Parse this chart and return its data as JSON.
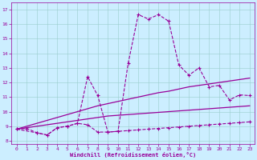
{
  "xlabel": "Windchill (Refroidissement éolien,°C)",
  "bg_color": "#cceeff",
  "line_color": "#990099",
  "grid_color": "#99cccc",
  "xlim": [
    -0.5,
    23.5
  ],
  "ylim": [
    7.8,
    17.5
  ],
  "xticks": [
    0,
    1,
    2,
    3,
    4,
    5,
    6,
    7,
    8,
    9,
    10,
    11,
    12,
    13,
    14,
    15,
    16,
    17,
    18,
    19,
    20,
    21,
    22,
    23
  ],
  "yticks": [
    8,
    9,
    10,
    11,
    12,
    13,
    14,
    15,
    16,
    17
  ],
  "lines": [
    {
      "x": [
        0,
        1,
        2,
        3,
        4,
        5,
        6,
        7,
        8,
        9,
        10,
        11,
        12,
        13,
        14,
        15,
        16,
        17,
        18,
        19,
        20,
        21,
        22,
        23
      ],
      "y": [
        8.8,
        8.9,
        9.0,
        9.1,
        9.2,
        9.3,
        9.4,
        9.5,
        9.6,
        9.7,
        9.75,
        9.8,
        9.85,
        9.9,
        9.95,
        10.0,
        10.05,
        10.1,
        10.15,
        10.2,
        10.25,
        10.3,
        10.35,
        10.4
      ],
      "marker": false,
      "linestyle": "-",
      "linewidth": 0.9
    },
    {
      "x": [
        0,
        1,
        2,
        3,
        4,
        5,
        6,
        7,
        8,
        9,
        10,
        11,
        12,
        13,
        14,
        15,
        16,
        17,
        18,
        19,
        20,
        21,
        22,
        23
      ],
      "y": [
        8.8,
        9.0,
        9.2,
        9.4,
        9.6,
        9.8,
        10.0,
        10.2,
        10.4,
        10.55,
        10.7,
        10.85,
        11.0,
        11.15,
        11.3,
        11.4,
        11.55,
        11.7,
        11.8,
        11.9,
        12.0,
        12.1,
        12.2,
        12.3
      ],
      "marker": false,
      "linestyle": "-",
      "linewidth": 0.9
    },
    {
      "x": [
        0,
        1,
        2,
        3,
        4,
        5,
        6,
        7,
        8,
        9,
        10,
        11,
        12,
        13,
        14,
        15,
        16,
        17,
        18,
        19,
        20,
        21,
        22,
        23
      ],
      "y": [
        8.8,
        8.85,
        8.55,
        8.4,
        8.9,
        9.0,
        9.2,
        9.1,
        8.6,
        8.6,
        8.65,
        8.7,
        8.75,
        8.8,
        8.85,
        8.9,
        8.95,
        9.0,
        9.05,
        9.1,
        9.15,
        9.2,
        9.25,
        9.3
      ],
      "marker": true,
      "linestyle": "--",
      "linewidth": 0.8
    },
    {
      "x": [
        0,
        2,
        3,
        4,
        5,
        6,
        7,
        8,
        9,
        10,
        11,
        12,
        13,
        14,
        15,
        16,
        17,
        18,
        19,
        20,
        21,
        22,
        23
      ],
      "y": [
        8.8,
        8.55,
        8.4,
        8.9,
        9.0,
        9.2,
        12.4,
        11.1,
        8.6,
        8.65,
        13.3,
        16.65,
        16.35,
        16.65,
        16.2,
        13.2,
        12.5,
        13.0,
        11.7,
        11.8,
        10.8,
        11.15,
        11.1
      ],
      "marker": true,
      "linestyle": "--",
      "linewidth": 0.8
    }
  ]
}
